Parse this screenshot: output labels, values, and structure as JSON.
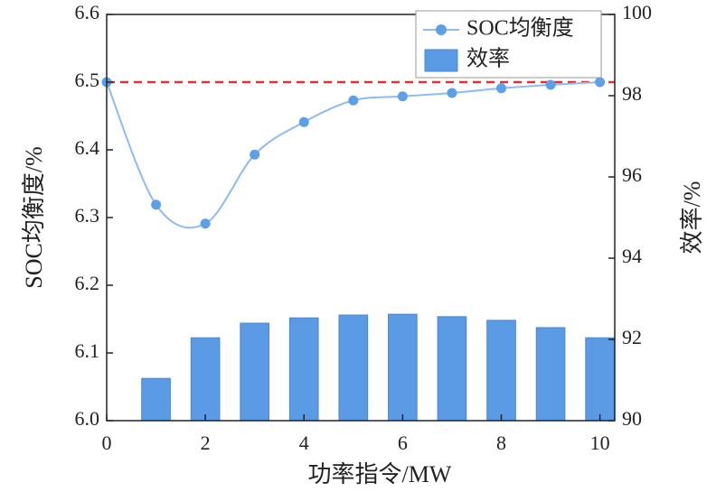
{
  "chart_data": {
    "type": "line_bar",
    "xlabel": "功率指令/MW",
    "ylabel": "SOC均衡度/%",
    "y2label": "效率/%",
    "xlim": [
      0,
      10.3
    ],
    "xticks": [
      0,
      2,
      4,
      6,
      8,
      10
    ],
    "ylim": [
      6.0,
      6.6
    ],
    "yticks": [
      {
        "value": 6,
        "label": "6.0"
      },
      6.1,
      6.2,
      6.3,
      6.4,
      6.5,
      6.6
    ],
    "y2lim": [
      90,
      100
    ],
    "y2ticks": [
      90,
      92,
      94,
      96,
      98,
      100
    ],
    "legend": "upper right",
    "reference_line": {
      "y": 6.5,
      "color": "#e03030"
    },
    "series": [
      {
        "name": "SOC均衡度",
        "type": "line",
        "color": "#5ea0e8",
        "x": [
          0,
          1,
          2,
          3,
          4,
          5,
          6,
          7,
          8,
          9,
          10
        ],
        "values": [
          6.5,
          6.319,
          6.291,
          6.393,
          6.441,
          6.473,
          6.479,
          6.484,
          6.491,
          6.496,
          6.5
        ]
      },
      {
        "name": "效率",
        "type": "bar",
        "axis": "y2",
        "color": "#5b9be6",
        "x": [
          1,
          2,
          3,
          4,
          5,
          6,
          7,
          8,
          9,
          10
        ],
        "values": [
          91.04,
          92.04,
          92.4,
          92.53,
          92.6,
          92.62,
          92.56,
          92.47,
          92.29,
          92.04
        ]
      }
    ]
  }
}
